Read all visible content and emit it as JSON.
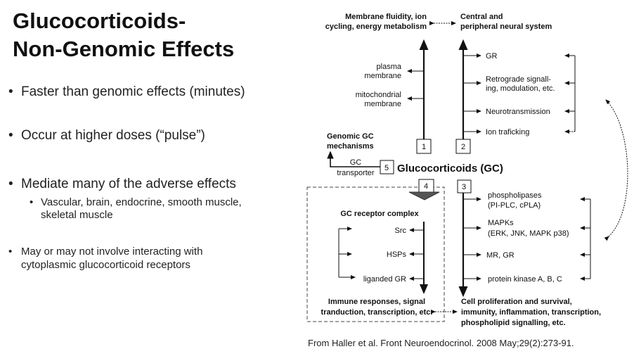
{
  "title": {
    "line1": "Glucocorticoids-",
    "line2": "Non-Genomic Effects"
  },
  "bullets": [
    "Faster than genomic effects (minutes)",
    "Occur at higher doses (“pulse”)",
    "Mediate many of the adverse effects"
  ],
  "sub_bullet": {
    "line1": "Vascular, brain, endocrine, smooth muscle,",
    "line2": "skeletal muscle"
  },
  "last_bullet": {
    "line1": "May or may not involve interacting with",
    "line2": "cytoplasmic glucocorticoid receptors"
  },
  "bullet_char": "•",
  "diagram": {
    "membrane_header": [
      "Membrane fluidity, ion",
      "cycling, energy metabolism"
    ],
    "neural_header": [
      "Central and",
      "peripheral neural system"
    ],
    "plasma": [
      "plasma",
      "membrane"
    ],
    "mito": [
      "mitochondrial",
      "membrane"
    ],
    "neural_items": {
      "gr": "GR",
      "retro": [
        "Retrograde signall-",
        "ing, modulation, etc."
      ],
      "neuro": "Neurotransmission",
      "ion": "Ion traficking"
    },
    "genomic": [
      "Genomic GC",
      "mechanisms"
    ],
    "transporter": [
      "GC",
      "transporter"
    ],
    "boxes": {
      "b1": "1",
      "b2": "2",
      "b3": "3",
      "b4": "4",
      "b5": "5"
    },
    "gc": "Glucocorticoids (GC)",
    "receptor_complex": "GC receptor complex",
    "receptor_items": {
      "src": "Src",
      "hsps": "HSPs",
      "lgr": "liganded GR"
    },
    "immune": [
      "Immune responses, signal",
      "tranduction, transcription, etc."
    ],
    "cell_items": {
      "phos": [
        "phospholipases",
        "(PI-PLC, cPLA)"
      ],
      "mapk": [
        "MAPKs",
        "(ERK, JNK, MAPK p38)"
      ],
      "mrgr": "MR, GR",
      "pk": "protein kinase A, B, C"
    },
    "cell": [
      "Cell proliferation and survival,",
      "immunity, inflammation, transcription,",
      "phospholipid signalling, etc."
    ]
  },
  "citation": "From Haller et al. Front Neuroendocrinol. 2008 May;29(2):273-91."
}
